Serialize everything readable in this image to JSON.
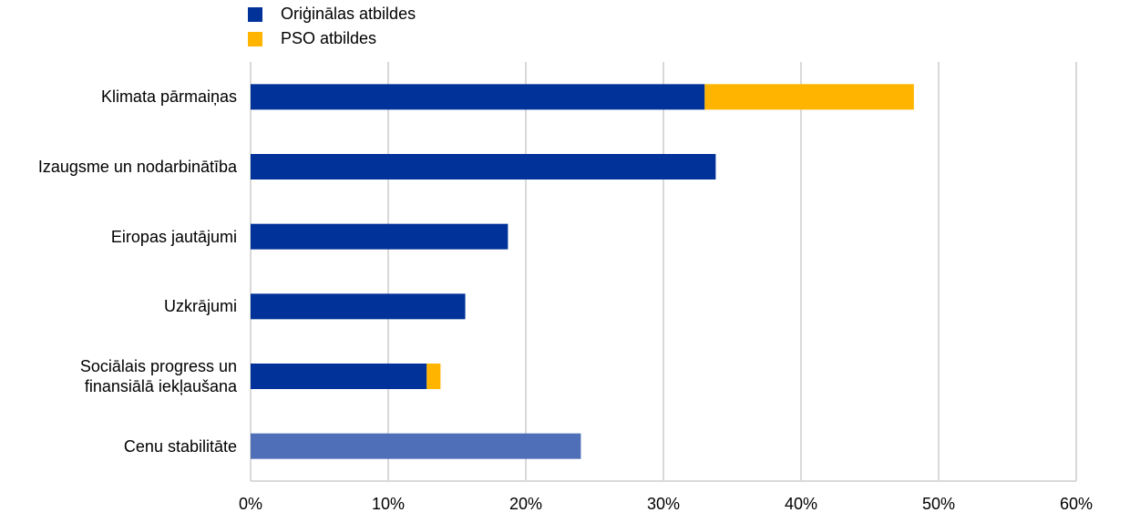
{
  "chart_data": {
    "type": "bar",
    "orientation": "horizontal",
    "stacked": true,
    "categories": [
      "Klimata pārmaiņas",
      "Izaugsme un nodarbinātība",
      "Eiropas jautājumi",
      "Uzkrājumi",
      "Sociālais progress un\nfinansiālā iekļaušana",
      "Cenu stabilitāte"
    ],
    "series": [
      {
        "name": "Oriģinālas atbildes",
        "color": "#003299",
        "point_colors": [
          "#003299",
          "#003299",
          "#003299",
          "#003299",
          "#003299",
          "#4f6fb8"
        ],
        "values": [
          33.0,
          33.8,
          18.7,
          15.6,
          12.8,
          24.0
        ]
      },
      {
        "name": "PSO atbildes",
        "color": "#ffb400",
        "values": [
          15.2,
          0,
          0,
          0,
          1.0,
          0
        ]
      }
    ],
    "xlim": [
      0,
      60
    ],
    "xticks": [
      {
        "value": 0,
        "label": "0%"
      },
      {
        "value": 10,
        "label": "10%"
      },
      {
        "value": 20,
        "label": "20%"
      },
      {
        "value": 30,
        "label": "30%"
      },
      {
        "value": 40,
        "label": "40%"
      },
      {
        "value": 50,
        "label": "50%"
      },
      {
        "value": 60,
        "label": "60%"
      }
    ],
    "grid": true,
    "legend": "top"
  }
}
